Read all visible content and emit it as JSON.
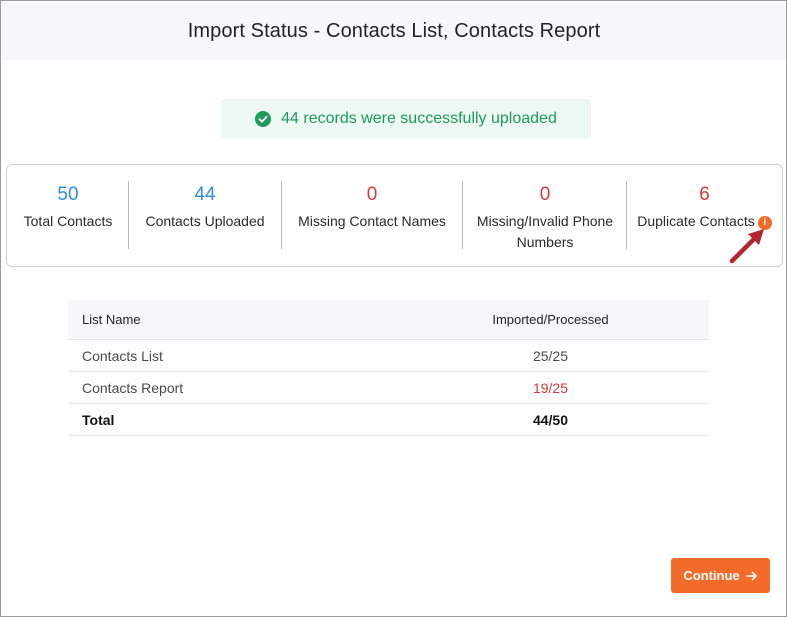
{
  "dialog": {
    "title": "Import Status - Contacts List, Contacts Report"
  },
  "banner": {
    "message": "44 records were successfully uploaded",
    "icon": "check-circle-icon",
    "color": "#1e9b5b"
  },
  "stats": [
    {
      "value": "50",
      "label": "Total Contacts",
      "color": "#2d8ee6"
    },
    {
      "value": "44",
      "label": "Contacts Uploaded",
      "color": "#2d8ee6"
    },
    {
      "value": "0",
      "label": "Missing Contact Names",
      "color": "#d23a3a"
    },
    {
      "value": "0",
      "label": "Missing/Invalid Phone Numbers",
      "color": "#d23a3a"
    },
    {
      "value": "6",
      "label": "Duplicate Contacts",
      "color": "#d23a3a",
      "info_icon": "info-icon"
    }
  ],
  "table": {
    "headers": {
      "name": "List Name",
      "count": "Imported/Processed"
    },
    "rows": [
      {
        "name": "Contacts List",
        "count": "25/25",
        "status": "complete"
      },
      {
        "name": "Contacts Report",
        "count": "19/25",
        "status": "partial"
      }
    ],
    "total": {
      "name": "Total",
      "count": "44/50"
    }
  },
  "footer": {
    "continue_label": "Continue",
    "accent": "#f26b2a"
  }
}
